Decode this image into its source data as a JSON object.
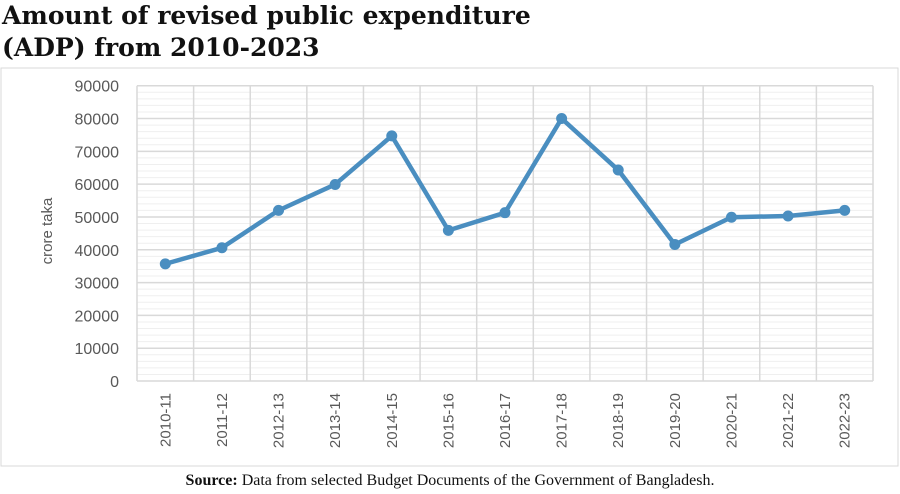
{
  "chart_data": {
    "type": "line",
    "title": "Amount of revised public expenditure (ADP) from 2010-2023",
    "title_lines": [
      "Amount of revised public expenditure",
      "(ADP) from 2010-2023"
    ],
    "xlabel": "",
    "ylabel": "crore taka",
    "categories": [
      "2010-11",
      "2011-12",
      "2012-13",
      "2013-14",
      "2014-15",
      "2015-16",
      "2016-17",
      "2017-18",
      "2018-19",
      "2019-20",
      "2020-21",
      "2021-22",
      "2022-23"
    ],
    "values": [
      35700,
      40600,
      52000,
      59900,
      74700,
      45900,
      51300,
      80000,
      64300,
      41600,
      49900,
      50300,
      52000
    ],
    "ylim": [
      0,
      90000
    ],
    "yticks": [
      0,
      10000,
      20000,
      30000,
      40000,
      50000,
      60000,
      70000,
      80000,
      90000
    ],
    "grid": true,
    "legend": "none",
    "line_color": "#4a8ec0"
  },
  "source": {
    "label": "Source:",
    "text": " Data from selected Budget Documents of the Government of Bangladesh."
  }
}
